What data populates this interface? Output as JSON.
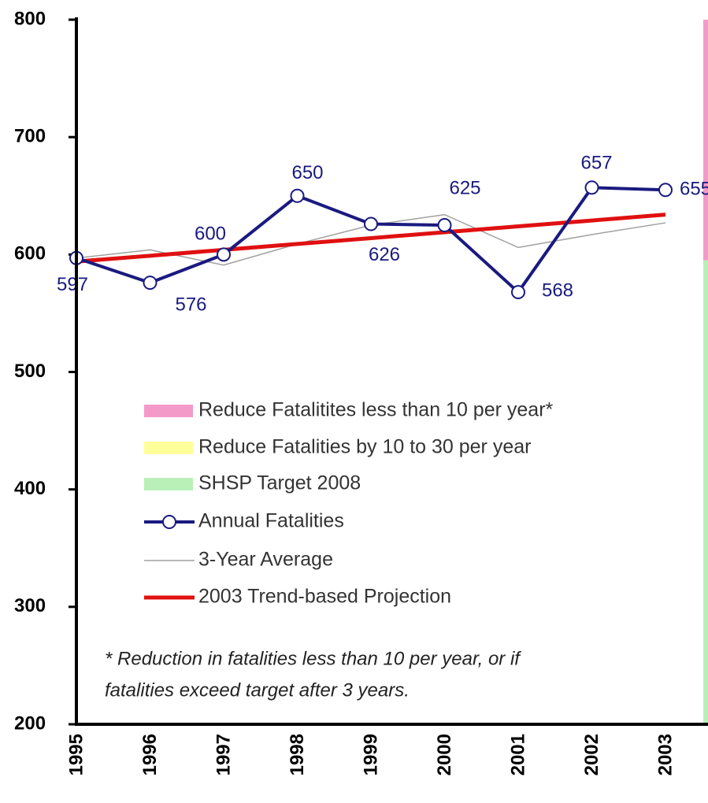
{
  "chart_data": {
    "type": "line",
    "categories": [
      "1995",
      "1996",
      "1997",
      "1998",
      "1999",
      "2000",
      "2001",
      "2002",
      "2003"
    ],
    "ylim": [
      200,
      800
    ],
    "yticks": [
      200,
      300,
      400,
      500,
      600,
      700,
      800
    ],
    "series": [
      {
        "name": "Annual Fatalities",
        "color": "#1a1a80",
        "markers": true,
        "data_labels": true,
        "values": [
          597,
          576,
          600,
          650,
          626,
          625,
          568,
          657,
          655
        ]
      },
      {
        "name": "3-Year Average",
        "color": "#a0a0a0",
        "values": [
          597,
          604,
          591,
          609,
          625,
          634,
          606,
          617,
          627
        ]
      },
      {
        "name": "2003 Trend-based Projection",
        "color": "#e01010",
        "values": [
          594,
          599,
          604,
          609,
          614,
          619,
          624,
          629,
          634
        ]
      }
    ],
    "regions": [
      {
        "name": "Reduce Fatalitites less than 10 per year*",
        "color": "#f49ac8",
        "range": [
          595,
          800
        ]
      },
      {
        "name": "Reduce Fatalities by 10 to 30 per year",
        "color": "#ffff99"
      },
      {
        "name": "SHSP Target 2008",
        "color": "#b8f0b8",
        "range": [
          200,
          595
        ]
      }
    ],
    "annotation": [
      "* Reduction in fatalities less than 10 per year, or if",
      "fatalities exceed target after 3 years."
    ]
  }
}
